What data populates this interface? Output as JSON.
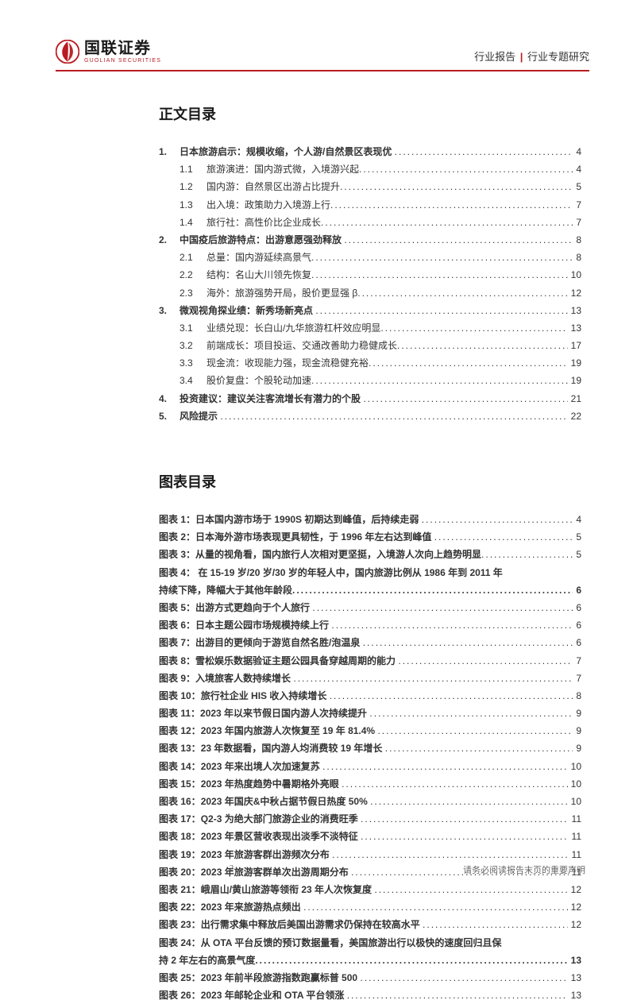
{
  "brand": {
    "cn": "国联证券",
    "en": "GUOLIAN SECURITIES"
  },
  "header": {
    "left": "行业报告",
    "sep": "|",
    "right": "行业专题研究"
  },
  "toc_title": "正文目录",
  "fig_title": "图表目录",
  "toc": [
    {
      "lvl": 1,
      "num": "1.",
      "label": "日本旅游启示：规模收缩，个人游/自然景区表现优",
      "page": "4"
    },
    {
      "lvl": 2,
      "num": "1.1",
      "label": "旅游演进：国内游式微，入境游兴起",
      "page": "4"
    },
    {
      "lvl": 2,
      "num": "1.2",
      "label": "国内游：自然景区出游占比提升",
      "page": "5"
    },
    {
      "lvl": 2,
      "num": "1.3",
      "label": "出入境：政策助力入境游上行",
      "page": "7"
    },
    {
      "lvl": 2,
      "num": "1.4",
      "label": "旅行社：高性价比企业成长",
      "page": "7"
    },
    {
      "lvl": 1,
      "num": "2.",
      "label": "中国疫后旅游特点：出游意愿强劲释放",
      "page": "8"
    },
    {
      "lvl": 2,
      "num": "2.1",
      "label": "总量：国内游延续高景气",
      "page": "8"
    },
    {
      "lvl": 2,
      "num": "2.2",
      "label": "结构：名山大川领先恢复",
      "page": "10"
    },
    {
      "lvl": 2,
      "num": "2.3",
      "label": "海外：旅游强势开局，股价更显强 β",
      "page": "12"
    },
    {
      "lvl": 1,
      "num": "3.",
      "label": "微观视角探业绩：新秀场新亮点",
      "page": "13"
    },
    {
      "lvl": 2,
      "num": "3.1",
      "label": "业绩兑现：长白山/九华旅游杠杆效应明显",
      "page": "13"
    },
    {
      "lvl": 2,
      "num": "3.2",
      "label": "前端成长：项目投运、交通改善助力稳健成长",
      "page": "17"
    },
    {
      "lvl": 2,
      "num": "3.3",
      "label": "现金流：收现能力强，现金流稳健充裕",
      "page": "19"
    },
    {
      "lvl": 2,
      "num": "3.4",
      "label": "股价复盘：个股轮动加速",
      "page": "19"
    },
    {
      "lvl": 1,
      "num": "4.",
      "label": "投资建议：建议关注客流增长有潜力的个股",
      "page": "21"
    },
    {
      "lvl": 1,
      "num": "5.",
      "label": "风险提示",
      "page": "22"
    }
  ],
  "figs": [
    {
      "n": "1：",
      "label": "日本国内游市场于 1990S 初期达到峰值，后持续走弱",
      "page": "4"
    },
    {
      "n": "2：",
      "label": "日本海外游市场表现更具韧性，于 1996 年左右达到峰值",
      "page": "5"
    },
    {
      "n": "3：",
      "label": "从量的视角看，国内旅行人次相对更坚挺，入境游人次向上趋势明显",
      "page": "5",
      "tight": true
    },
    {
      "n": "4：",
      "wrap": true,
      "line1": " 在 15-19 岁/20 岁/30 岁的年轻人中，国内旅游比例从 1986 年到 2011 年",
      "line2": "持续下降，降幅大于其他年龄段",
      "page": "6"
    },
    {
      "n": "5：",
      "label": "出游方式更趋向于个人旅行",
      "page": "6"
    },
    {
      "n": "6：",
      "label": "日本主题公园市场规模持续上行",
      "page": "6"
    },
    {
      "n": "7：",
      "label": "出游目的更倾向于游览自然名胜/泡温泉",
      "page": "6"
    },
    {
      "n": "8：",
      "label": "雪松娱乐数据验证主题公园具备穿越周期的能力",
      "page": "7"
    },
    {
      "n": "9：",
      "label": "入境旅客人数持续增长",
      "page": "7"
    },
    {
      "n": "10：",
      "label": "旅行社企业 HIS 收入持续增长",
      "page": "8"
    },
    {
      "n": "11：",
      "label": "2023 年以来节假日国内游人次持续提升",
      "page": "9"
    },
    {
      "n": "12：",
      "label": "2023 年国内旅游人次恢复至 19 年 81.4%",
      "page": "9"
    },
    {
      "n": "13：",
      "label": "23 年数据看，国内游人均消费较 19 年增长",
      "page": "9"
    },
    {
      "n": "14：",
      "label": "2023 年来出境人次加速复苏",
      "page": "10"
    },
    {
      "n": "15：",
      "label": "2023 年热度趋势中暑期格外亮眼",
      "page": "10"
    },
    {
      "n": "16：",
      "label": "2023 年国庆&中秋占据节假日热度 50%",
      "page": "10"
    },
    {
      "n": "17：",
      "label": "Q2-3 为绝大部门旅游企业的消费旺季",
      "page": "11"
    },
    {
      "n": "18：",
      "label": "2023 年景区营收表现出淡季不淡特征",
      "page": "11"
    },
    {
      "n": "19：",
      "label": "2023 年旅游客群出游频次分布",
      "page": "11"
    },
    {
      "n": "20：",
      "label": "2023 年旅游客群单次出游周期分布",
      "page": "11"
    },
    {
      "n": "21：",
      "label": "峨眉山/黄山旅游等领衔 23 年人次恢复度",
      "page": "12"
    },
    {
      "n": "22：",
      "label": "2023 年来旅游热点频出",
      "page": "12"
    },
    {
      "n": "23：",
      "label": "出行需求集中释放后美国出游需求仍保持在较高水平",
      "page": "12"
    },
    {
      "n": "24：",
      "wrap": true,
      "line1": "从 OTA 平台反馈的预订数据量看，美国旅游出行以极快的速度回归且保",
      "line2": "持 2 年左右的高景气度",
      "page": "13"
    },
    {
      "n": "25：",
      "label": "2023 年前半段旅游指数跑赢标普 500",
      "page": "13"
    },
    {
      "n": "26：",
      "label": "2023 年邮轮企业和 OTA 平台领涨",
      "page": "13"
    }
  ],
  "footer": {
    "page": "2",
    "note": "请务必阅读报告末页的重要声明"
  }
}
